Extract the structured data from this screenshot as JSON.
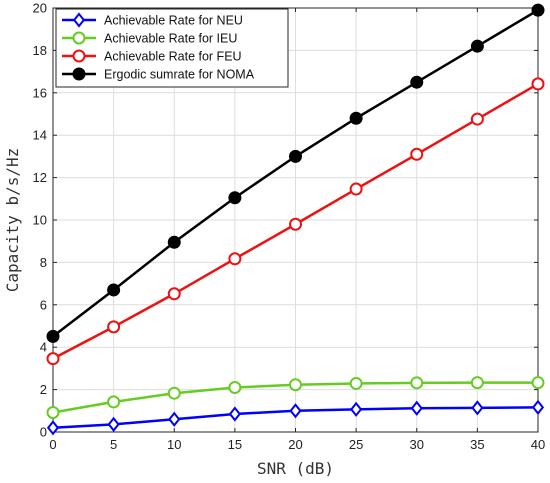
{
  "chart_data": {
    "type": "line",
    "xlabel": "SNR (dB)",
    "ylabel": "Capacity b/s/Hz",
    "x": [
      0,
      5,
      10,
      15,
      20,
      25,
      30,
      35,
      40
    ],
    "xlim": [
      0,
      40
    ],
    "ylim": [
      0,
      20
    ],
    "xticks": [
      "0",
      "5",
      "10",
      "15",
      "20",
      "25",
      "30",
      "35",
      "40"
    ],
    "yticks": [
      "0",
      "2",
      "4",
      "6",
      "8",
      "10",
      "12",
      "14",
      "16",
      "18",
      "20"
    ],
    "grid": true,
    "legend_position": "top-left",
    "series": [
      {
        "name": "Achievable Rate for NEU",
        "color": "#0000ff",
        "marker": "diamond-open",
        "values": [
          0.2,
          0.36,
          0.6,
          0.85,
          1.0,
          1.07,
          1.12,
          1.14,
          1.16
        ]
      },
      {
        "name": "Achievable Rate for IEU",
        "color": "#66cc22",
        "marker": "circle-open",
        "values": [
          0.92,
          1.42,
          1.83,
          2.1,
          2.23,
          2.29,
          2.32,
          2.33,
          2.33
        ]
      },
      {
        "name": "Achievable Rate for FEU",
        "color": "#ee1111",
        "marker": "circle-open",
        "values": [
          3.46,
          4.96,
          6.52,
          8.17,
          9.8,
          11.46,
          13.1,
          14.76,
          16.42
        ]
      },
      {
        "name": "Ergodic sumrate for NOMA",
        "color": "#000000",
        "marker": "circle-filled",
        "values": [
          4.51,
          6.7,
          8.95,
          11.05,
          13.0,
          14.8,
          16.5,
          18.2,
          19.9
        ]
      }
    ]
  }
}
